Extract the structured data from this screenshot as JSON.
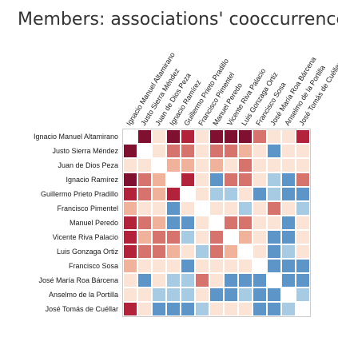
{
  "chart_data": {
    "type": "heatmap",
    "title": "Members: associations' cooccurrence",
    "labels": [
      "Ignacio Manuel Altamirano",
      "Justo Sierra Méndez",
      "Juan de Dios Peza",
      "Ignacio Ramírez",
      "Guillermo Prieto Pradillo",
      "Francisco Pimentel",
      "Manuel Peredo",
      "Vicente Riva Palacio",
      "Luis Gonzaga Ortiz",
      "Francisco Sosa",
      "José María Roa Bárcena",
      "Anselmo de la Portilla",
      "José Tomás de Cuéllar"
    ],
    "colors": {
      "2": "#7f1030",
      "1": "#b2223a",
      "0.5": "#d6736c",
      "0.25": "#f0b29a",
      "0.1": "#fbe3d6",
      "-0.1": "#dae8f2",
      "-0.25": "#a6cbe3",
      "-0.5": "#5d95c8",
      "-1": "#2c6aa8"
    },
    "values": [
      [
        0,
        2,
        0.1,
        2,
        1,
        0.1,
        2,
        2,
        2,
        0.5,
        0.1,
        0.1,
        1
      ],
      [
        2,
        0,
        0.1,
        0.5,
        0.5,
        0.1,
        0.5,
        0.5,
        0.25,
        0.1,
        -0.5,
        0.1,
        0.1
      ],
      [
        0.1,
        0.1,
        0,
        0.25,
        0.25,
        0.1,
        0.25,
        0.1,
        0.5,
        0.1,
        0.1,
        0.1,
        0.1
      ],
      [
        2,
        0.5,
        0.25,
        0,
        1,
        0.1,
        -0.5,
        0.5,
        0.5,
        0.1,
        -0.25,
        -0.5,
        0.5
      ],
      [
        1,
        0.5,
        0.25,
        1,
        0,
        0.1,
        -0.25,
        -0.25,
        0.1,
        -0.5,
        -0.25,
        -0.5,
        -0.5
      ],
      [
        0.25,
        0.1,
        0.1,
        -0.5,
        0.1,
        0,
        0.1,
        0.1,
        -0.25,
        0.1,
        0.5,
        0.1,
        -0.25
      ],
      [
        1,
        0.5,
        0.25,
        -0.5,
        -0.5,
        0.1,
        0,
        0.5,
        0.5,
        0.1,
        0.1,
        -0.5,
        0.1
      ],
      [
        1,
        0.25,
        0.5,
        0.5,
        -0.25,
        0.1,
        0.5,
        0,
        0.25,
        0.1,
        -0.5,
        -0.5,
        0.1
      ],
      [
        1,
        0.5,
        0.5,
        0.25,
        0.1,
        -0.25,
        0.5,
        0.25,
        0,
        0.1,
        -0.5,
        -0.25,
        0.1
      ],
      [
        0.25,
        0.1,
        0.1,
        0.1,
        -0.5,
        0.1,
        0.1,
        0.1,
        0.1,
        0,
        -0.5,
        -0.5,
        -0.5
      ],
      [
        0.1,
        -0.5,
        0.1,
        -0.25,
        -0.25,
        0.5,
        0.1,
        -0.5,
        -0.5,
        -0.5,
        0,
        -0.5,
        -0.5
      ],
      [
        0.1,
        0.1,
        -0.25,
        -0.25,
        -0.25,
        0.1,
        -0.5,
        -0.5,
        -0.25,
        -0.5,
        -0.5,
        0,
        -0.25
      ],
      [
        1,
        0.1,
        -0.5,
        -0.5,
        -0.5,
        -0.25,
        0.1,
        0.1,
        0.1,
        -0.5,
        -0.5,
        -0.25,
        0
      ]
    ],
    "grid": false,
    "legend": "none"
  }
}
